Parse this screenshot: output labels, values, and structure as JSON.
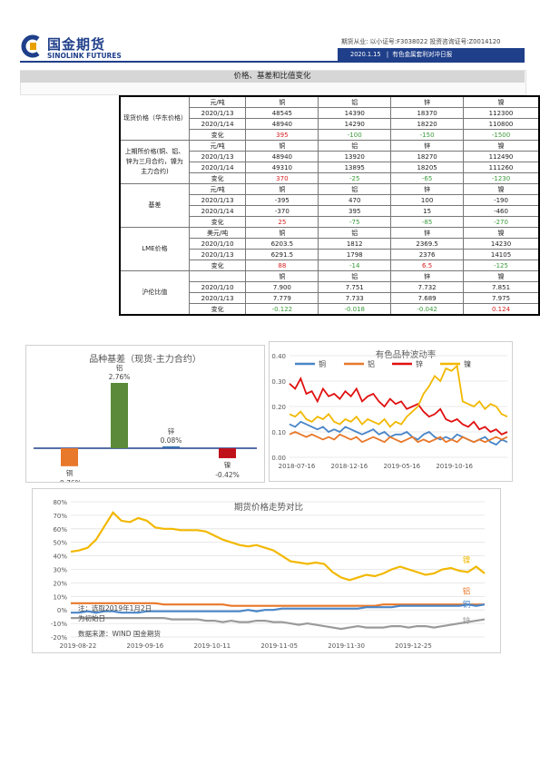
{
  "header": {
    "logo_cn": "国金期货",
    "logo_en": "SINOLINK FUTURES",
    "licence": "期货从业: 以小证号:F3038022 投资咨询证号:Z0014120",
    "date": "2020.1.15",
    "report": "有色金属套利对冲日报",
    "brand_color": "#1f3f8a"
  },
  "section_title": "价格、基差和比值变化",
  "table": {
    "metals": [
      "铜",
      "铝",
      "锌",
      "镍"
    ],
    "groups": [
      {
        "name": "现货价格（华东价格）",
        "unit": "元/吨",
        "rows": [
          {
            "date": "2020/1/13",
            "values": [
              "48545",
              "14390",
              "18370",
              "112300"
            ]
          },
          {
            "date": "2020/1/14",
            "values": [
              "48940",
              "14290",
              "18220",
              "110800"
            ]
          }
        ],
        "change_label": "变化",
        "change": [
          "395",
          "-100",
          "-150",
          "-1500"
        ]
      },
      {
        "name": "上期所价格(铜、铝、锌为三月合约，镍为主力合约)",
        "unit": "元/吨",
        "rows": [
          {
            "date": "2020/1/13",
            "values": [
              "48940",
              "13920",
              "18270",
              "112490"
            ]
          },
          {
            "date": "2020/1/14",
            "values": [
              "49310",
              "13895",
              "18205",
              "111260"
            ]
          }
        ],
        "change_label": "变化",
        "change": [
          "370",
          "-25",
          "-65",
          "-1230"
        ]
      },
      {
        "name": "基差",
        "unit": "元/吨",
        "rows": [
          {
            "date": "2020/1/13",
            "values": [
              "-395",
              "470",
              "100",
              "-190"
            ]
          },
          {
            "date": "2020/1/14",
            "values": [
              "-370",
              "395",
              "15",
              "-460"
            ]
          }
        ],
        "change_label": "变化",
        "change": [
          "25",
          "-75",
          "-85",
          "-270"
        ]
      },
      {
        "name": "LME价格",
        "unit": "美元/吨",
        "rows": [
          {
            "date": "2020/1/10",
            "values": [
              "6203.5",
              "1812",
              "2369.5",
              "14230"
            ]
          },
          {
            "date": "2020/1/13",
            "values": [
              "6291.5",
              "1798",
              "2376",
              "14105"
            ]
          }
        ],
        "change_label": "变化",
        "change": [
          "88",
          "-14",
          "6.5",
          "-125"
        ]
      },
      {
        "name": "沪伦比值",
        "unit": "",
        "rows": [
          {
            "date": "2020/1/10",
            "values": [
              "7.900",
              "7.751",
              "7.732",
              "7.851"
            ]
          },
          {
            "date": "2020/1/13",
            "values": [
              "7.779",
              "7.733",
              "7.689",
              "7.975"
            ]
          }
        ],
        "change_label": "变化",
        "change": [
          "-0.122",
          "-0.018",
          "-0.042",
          "0.124"
        ]
      }
    ]
  },
  "chart_data": [
    {
      "type": "bar",
      "title": "品种基差（现货-主力合约）",
      "categories": [
        "铜",
        "铝",
        "锌",
        "镍"
      ],
      "values": [
        -0.76,
        2.76,
        0.08,
        -0.42
      ],
      "labels": [
        "-0.76%",
        "2.76%",
        "0.08%",
        "-0.42%"
      ],
      "colors": [
        "#e8782a",
        "#5a8a3a",
        "#3b6fb0",
        "#c0121b"
      ]
    },
    {
      "type": "line",
      "title": "有色品种波动率",
      "x_ticks": [
        "2018-07-16",
        "2018-12-16",
        "2019-05-16",
        "2019-10-16"
      ],
      "y_ticks": [
        "0.00",
        "0.10",
        "0.20",
        "0.30",
        "0.40"
      ],
      "ylim": [
        0,
        0.4
      ],
      "legend": "top",
      "series": [
        {
          "name": "铜",
          "color": "#4a86c8",
          "values": [
            0.13,
            0.12,
            0.14,
            0.13,
            0.12,
            0.11,
            0.12,
            0.1,
            0.11,
            0.1,
            0.12,
            0.11,
            0.1,
            0.09,
            0.1,
            0.11,
            0.09,
            0.1,
            0.08,
            0.09,
            0.09,
            0.1,
            0.08,
            0.07,
            0.09,
            0.1,
            0.08,
            0.07,
            0.08,
            0.07,
            0.09,
            0.08,
            0.07,
            0.06,
            0.07,
            0.08,
            0.06,
            0.05,
            0.07,
            0.06
          ]
        },
        {
          "name": "铝",
          "color": "#e8782a",
          "values": [
            0.09,
            0.1,
            0.09,
            0.08,
            0.09,
            0.08,
            0.07,
            0.08,
            0.07,
            0.09,
            0.08,
            0.07,
            0.08,
            0.06,
            0.07,
            0.08,
            0.07,
            0.06,
            0.08,
            0.07,
            0.06,
            0.07,
            0.08,
            0.06,
            0.07,
            0.06,
            0.07,
            0.08,
            0.06,
            0.07,
            0.06,
            0.08,
            0.07,
            0.06,
            0.07,
            0.06,
            0.07,
            0.08,
            0.07,
            0.08
          ]
        },
        {
          "name": "锌",
          "color": "#e01010",
          "values": [
            0.29,
            0.27,
            0.31,
            0.25,
            0.26,
            0.22,
            0.27,
            0.24,
            0.25,
            0.23,
            0.26,
            0.24,
            0.27,
            0.22,
            0.24,
            0.25,
            0.22,
            0.2,
            0.23,
            0.21,
            0.22,
            0.19,
            0.2,
            0.21,
            0.18,
            0.16,
            0.17,
            0.19,
            0.15,
            0.14,
            0.15,
            0.13,
            0.12,
            0.14,
            0.11,
            0.12,
            0.1,
            0.11,
            0.09,
            0.1
          ]
        },
        {
          "name": "镍",
          "color": "#f2b800",
          "values": [
            0.17,
            0.16,
            0.18,
            0.15,
            0.14,
            0.16,
            0.15,
            0.17,
            0.14,
            0.13,
            0.15,
            0.14,
            0.16,
            0.13,
            0.15,
            0.14,
            0.13,
            0.15,
            0.12,
            0.14,
            0.13,
            0.16,
            0.18,
            0.2,
            0.25,
            0.28,
            0.32,
            0.3,
            0.35,
            0.34,
            0.36,
            0.22,
            0.21,
            0.2,
            0.22,
            0.19,
            0.21,
            0.2,
            0.17,
            0.16
          ]
        }
      ]
    },
    {
      "type": "line",
      "title": "期货价格走势对比",
      "x_ticks": [
        "2019-08-22",
        "2019-09-16",
        "2019-10-11",
        "2019-11-05",
        "2019-11-30",
        "2019-12-25"
      ],
      "y_ticks": [
        "80%",
        "70%",
        "60%",
        "50%",
        "40%",
        "30%",
        "20%",
        "10%",
        "0%",
        "-10%",
        "-20%"
      ],
      "ylim": [
        -20,
        80
      ],
      "note_lines": [
        "注：选取2019年1月2日",
        "为初始日",
        "数据来源：WIND 国金期货"
      ],
      "series": [
        {
          "name": "镍",
          "color": "#f2b800",
          "values": [
            43,
            44,
            46,
            52,
            62,
            72,
            66,
            65,
            68,
            66,
            61,
            60,
            60,
            59,
            59,
            59,
            58,
            55,
            52,
            50,
            48,
            47,
            48,
            46,
            44,
            40,
            36,
            35,
            34,
            35,
            34,
            28,
            24,
            22,
            24,
            26,
            25,
            27,
            30,
            32,
            30,
            28,
            26,
            27,
            30,
            31,
            29,
            28,
            32,
            27
          ]
        },
        {
          "name": "铝",
          "color": "#e8782a",
          "values": [
            5,
            5,
            5,
            5,
            5,
            5,
            5,
            5,
            5,
            5,
            5,
            4,
            4,
            4,
            4,
            4,
            4,
            4,
            4,
            3,
            3,
            3,
            3,
            3,
            3,
            3,
            3,
            3,
            3,
            3,
            3,
            3,
            3,
            3,
            3,
            3,
            3,
            4,
            4,
            4,
            4,
            4,
            4,
            4,
            4,
            4,
            4,
            4,
            4,
            4
          ]
        },
        {
          "name": "铜",
          "color": "#4a86c8",
          "values": [
            -2,
            -2,
            -1,
            -2,
            -1,
            -1,
            -2,
            -2,
            -2,
            -1,
            -1,
            -1,
            -1,
            -1,
            -1,
            -1,
            -1,
            -1,
            -1,
            -1,
            -1,
            0,
            -1,
            0,
            0,
            1,
            1,
            1,
            1,
            1,
            1,
            1,
            1,
            1,
            1,
            2,
            2,
            2,
            2,
            3,
            3,
            3,
            3,
            3,
            3,
            3,
            3,
            4,
            3,
            4
          ]
        },
        {
          "name": "锌",
          "color": "#9a9a9a",
          "values": [
            -6,
            -6,
            -6,
            -6,
            -6,
            -6,
            -6,
            -6,
            -6,
            -6,
            -6,
            -6,
            -7,
            -7,
            -7,
            -7,
            -8,
            -8,
            -9,
            -8,
            -9,
            -9,
            -8,
            -8,
            -9,
            -9,
            -10,
            -11,
            -10,
            -11,
            -12,
            -13,
            -14,
            -13,
            -12,
            -13,
            -13,
            -13,
            -12,
            -12,
            -13,
            -12,
            -12,
            -13,
            -12,
            -11,
            -10,
            -9,
            -8,
            -7
          ]
        }
      ]
    }
  ]
}
